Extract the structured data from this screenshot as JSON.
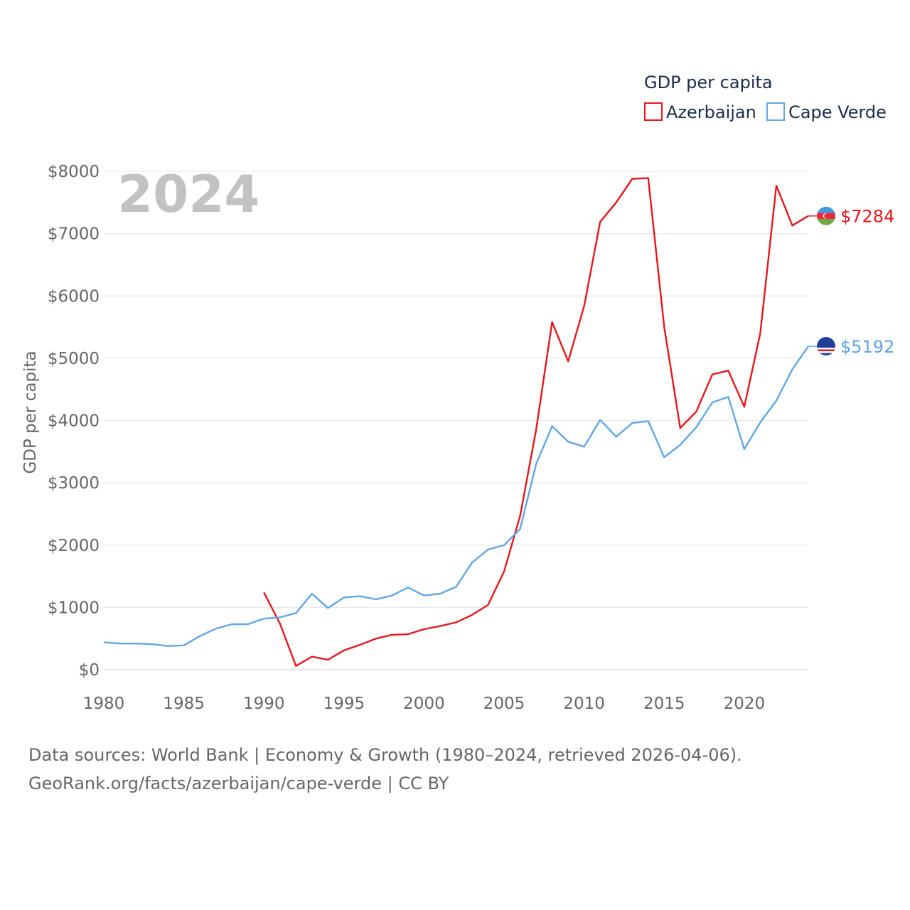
{
  "chart_data": {
    "type": "line",
    "title_year": "2024",
    "ylabel": "GDP per capita",
    "xlabel": "",
    "legend": {
      "title": "GDP per capita",
      "position": "top-right"
    },
    "ylim": [
      0,
      8000
    ],
    "xlim": [
      1980,
      2024
    ],
    "y_ticks": [
      0,
      1000,
      2000,
      3000,
      4000,
      5000,
      6000,
      7000,
      8000
    ],
    "y_tick_labels": [
      "$0",
      "$1000",
      "$2000",
      "$3000",
      "$4000",
      "$5000",
      "$6000",
      "$7000",
      "$8000"
    ],
    "x_ticks": [
      1980,
      1985,
      1990,
      1995,
      2000,
      2005,
      2010,
      2015,
      2020
    ],
    "x_tick_labels": [
      "1980",
      "1985",
      "1990",
      "1995",
      "2000",
      "2005",
      "2010",
      "2015",
      "2020"
    ],
    "grid": true,
    "series": [
      {
        "name": "Azerbaijan",
        "color": "#e8161b",
        "end_label": "$7284",
        "flag": "azerbaijan-flag-icon",
        "x": [
          1990,
          1991,
          1992,
          1993,
          1994,
          1995,
          1996,
          1997,
          1998,
          1999,
          2000,
          2001,
          2002,
          2003,
          2004,
          2005,
          2006,
          2007,
          2008,
          2009,
          2010,
          2011,
          2012,
          2013,
          2014,
          2015,
          2016,
          2017,
          2018,
          2019,
          2020,
          2021,
          2022,
          2023,
          2024
        ],
        "values": [
          1240,
          740,
          60,
          210,
          160,
          310,
          400,
          500,
          560,
          570,
          650,
          700,
          760,
          880,
          1040,
          1580,
          2470,
          3850,
          5580,
          4950,
          5840,
          7190,
          7500,
          7880,
          7890,
          5500,
          3880,
          4140,
          4740,
          4800,
          4220,
          5400,
          7770,
          7130,
          7284
        ]
      },
      {
        "name": "Cape Verde",
        "color": "#61a6e8",
        "end_label": "$5192",
        "flag": "cape-verde-flag-icon",
        "x": [
          1980,
          1981,
          1982,
          1983,
          1984,
          1985,
          1986,
          1987,
          1988,
          1989,
          1990,
          1991,
          1992,
          1993,
          1994,
          1995,
          1996,
          1997,
          1998,
          1999,
          2000,
          2001,
          2002,
          2003,
          2004,
          2005,
          2006,
          2007,
          2008,
          2009,
          2010,
          2011,
          2012,
          2013,
          2014,
          2015,
          2016,
          2017,
          2018,
          2019,
          2020,
          2021,
          2022,
          2023,
          2024
        ],
        "values": [
          440,
          420,
          420,
          410,
          380,
          390,
          540,
          660,
          730,
          730,
          820,
          840,
          910,
          1220,
          990,
          1160,
          1180,
          1130,
          1190,
          1320,
          1190,
          1220,
          1330,
          1720,
          1930,
          2000,
          2260,
          3300,
          3910,
          3660,
          3580,
          4010,
          3740,
          3960,
          3990,
          3410,
          3610,
          3890,
          4290,
          4380,
          3540,
          3970,
          4320,
          4820,
          5192
        ]
      }
    ]
  },
  "footer": {
    "line1": "Data sources: World Bank | Economy & Growth (1980–2024, retrieved 2026-04-06).",
    "line2": "GeoRank.org/facts/azerbaijan/cape-verde | CC BY"
  }
}
